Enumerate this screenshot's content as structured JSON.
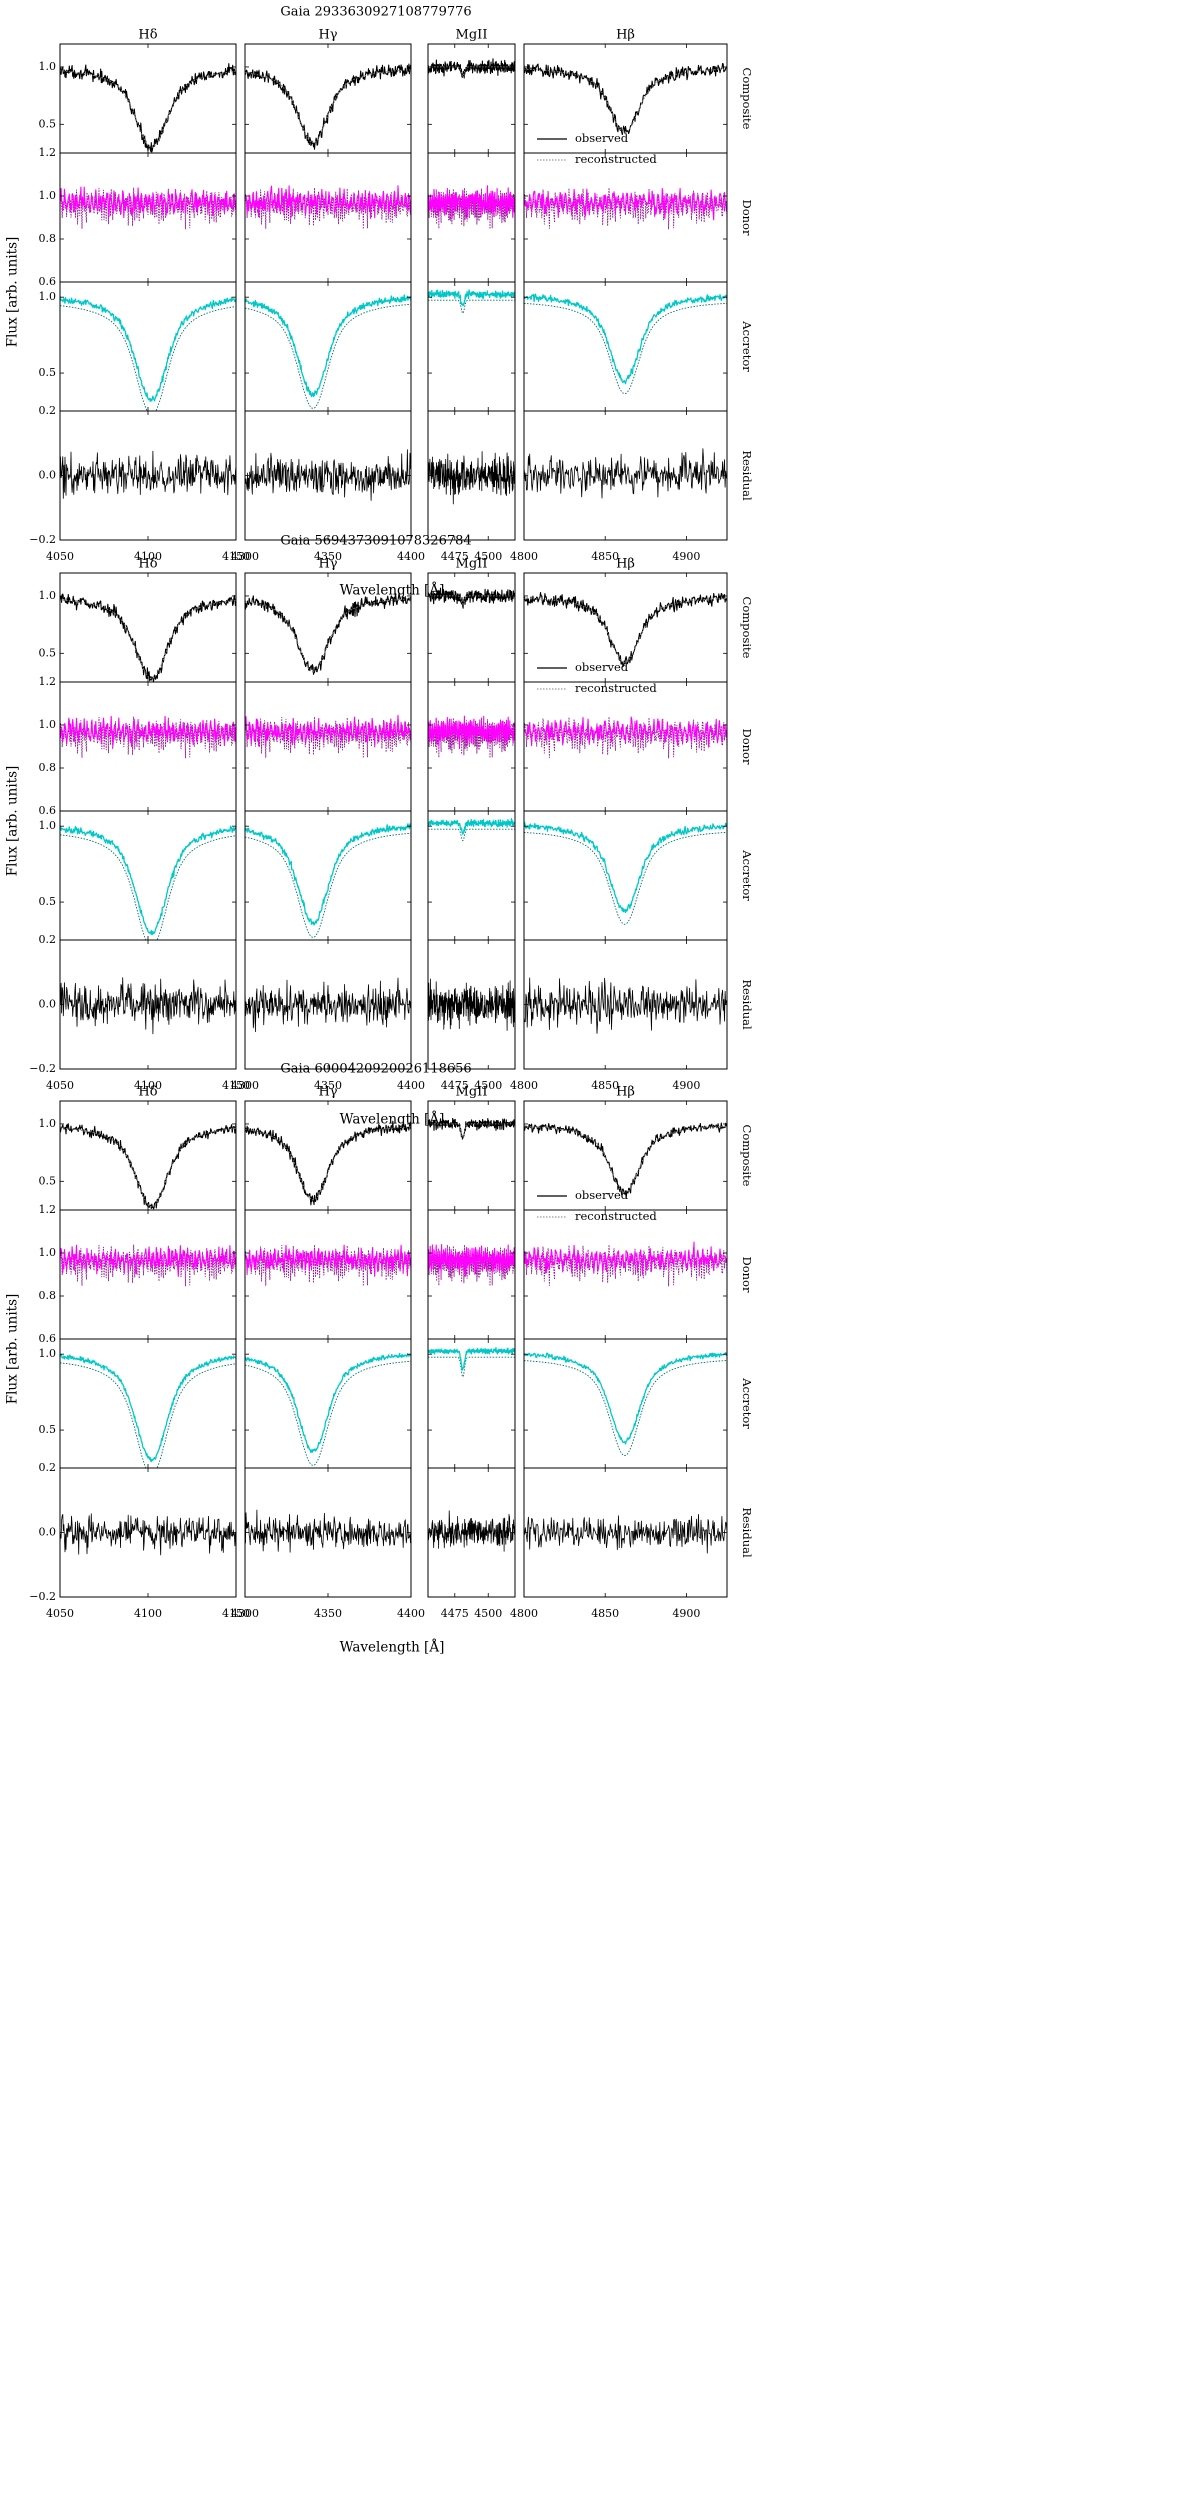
{
  "chart_data": [
    {
      "type": "line",
      "title": "Gaia 2933630927108779776",
      "xlabel": "Wavelength [Å]",
      "ylabel": "Flux [arb. units]",
      "columns": [
        {
          "label": "Hδ",
          "xlim": [
            4050,
            4150
          ],
          "xticks": [
            "4050",
            "4100",
            "4150"
          ],
          "center": 4102,
          "depth": 0.7
        },
        {
          "label": "Hγ",
          "xlim": [
            4300,
            4400
          ],
          "xticks": [
            "4300",
            "4350",
            "4400"
          ],
          "center": 4341,
          "depth": 0.66
        },
        {
          "label": "MgII",
          "xlim": [
            4455,
            4520
          ],
          "xticks": [
            "4475",
            "4500"
          ],
          "center": 4481,
          "depth": 0.08
        },
        {
          "label": "Hβ",
          "xlim": [
            4800,
            4925
          ],
          "xticks": [
            "4800",
            "4850",
            "4900"
          ],
          "center": 4862,
          "depth": 0.57
        }
      ],
      "rows": [
        {
          "label": "Composite",
          "ylim": [
            0.25,
            1.2
          ],
          "yticks": [
            "0.5",
            "1.0"
          ],
          "series": [
            {
              "name": "observed",
              "color": "#000000",
              "noise": 0.05
            },
            {
              "name": "reconstructed",
              "color": "#808080"
            }
          ]
        },
        {
          "label": "Donor",
          "ylim": [
            0.6,
            1.2
          ],
          "yticks": [
            "0.6",
            "0.8",
            "1.0",
            "1.2"
          ],
          "series": [
            {
              "color": "#ff00ff",
              "noise": 0.04
            },
            {
              "color": "#8b008b"
            }
          ]
        },
        {
          "label": "Accretor",
          "ylim": [
            0.25,
            1.1
          ],
          "yticks": [
            "0.5",
            "1.0"
          ],
          "series": [
            {
              "color": "#00c8c8",
              "noise": 0.02
            },
            {
              "color": "#007070"
            }
          ]
        },
        {
          "label": "Residual",
          "ylim": [
            -0.2,
            0.2
          ],
          "yticks": [
            "−0.2",
            "0.0",
            "0.2"
          ],
          "series": [
            {
              "color": "#000000",
              "noise": 0.055
            }
          ]
        }
      ],
      "legend": {
        "entries": [
          "observed",
          "reconstructed"
        ],
        "placement": "composite row, Hβ panel, lower-right"
      }
    },
    {
      "type": "line",
      "title": "Gaia 5694373091078326784",
      "xlabel": "Wavelength [Å]",
      "ylabel": "Flux [arb. units]",
      "columns": [
        {
          "label": "Hδ",
          "xlim": [
            4050,
            4150
          ],
          "xticks": [
            "4050",
            "4100",
            "4150"
          ],
          "center": 4102,
          "depth": 0.72
        },
        {
          "label": "Hγ",
          "xlim": [
            4300,
            4400
          ],
          "xticks": [
            "4300",
            "4350",
            "4400"
          ],
          "center": 4341,
          "depth": 0.66
        },
        {
          "label": "MgII",
          "xlim": [
            4455,
            4520
          ],
          "xticks": [
            "4475",
            "4500"
          ],
          "center": 4481,
          "depth": 0.07
        },
        {
          "label": "Hβ",
          "xlim": [
            4800,
            4925
          ],
          "xticks": [
            "4800",
            "4850",
            "4900"
          ],
          "center": 4862,
          "depth": 0.58
        }
      ],
      "rows": [
        {
          "label": "Composite",
          "ylim": [
            0.25,
            1.2
          ],
          "yticks": [
            "0.5",
            "1.0"
          ],
          "series": [
            {
              "name": "observed",
              "color": "#000000",
              "noise": 0.05
            },
            {
              "name": "reconstructed",
              "color": "#808080"
            }
          ]
        },
        {
          "label": "Donor",
          "ylim": [
            0.6,
            1.2
          ],
          "yticks": [
            "0.6",
            "0.8",
            "1.0",
            "1.2"
          ],
          "series": [
            {
              "color": "#ff00ff",
              "noise": 0.035
            },
            {
              "color": "#8b008b"
            }
          ]
        },
        {
          "label": "Accretor",
          "ylim": [
            0.25,
            1.1
          ],
          "yticks": [
            "0.5",
            "1.0"
          ],
          "series": [
            {
              "color": "#00c8c8",
              "noise": 0.02
            },
            {
              "color": "#007070"
            }
          ]
        },
        {
          "label": "Residual",
          "ylim": [
            -0.2,
            0.2
          ],
          "yticks": [
            "−0.2",
            "0.0",
            "0.2"
          ],
          "series": [
            {
              "color": "#000000",
              "noise": 0.06
            }
          ]
        }
      ],
      "legend": {
        "entries": [
          "observed",
          "reconstructed"
        ],
        "placement": "composite row, Hβ panel, lower-right"
      }
    },
    {
      "type": "line",
      "title": "Gaia 6000420920026118656",
      "xlabel": "Wavelength [Å]",
      "ylabel": "Flux [arb. units]",
      "columns": [
        {
          "label": "Hδ",
          "xlim": [
            4050,
            4150
          ],
          "xticks": [
            "4050",
            "4100",
            "4150"
          ],
          "center": 4102,
          "depth": 0.72
        },
        {
          "label": "Hγ",
          "xlim": [
            4300,
            4400
          ],
          "xticks": [
            "4300",
            "4350",
            "4400"
          ],
          "center": 4341,
          "depth": 0.66
        },
        {
          "label": "MgII",
          "xlim": [
            4455,
            4520
          ],
          "xticks": [
            "4475",
            "4500"
          ],
          "center": 4481,
          "depth": 0.12
        },
        {
          "label": "Hβ",
          "xlim": [
            4800,
            4925
          ],
          "xticks": [
            "4800",
            "4850",
            "4900"
          ],
          "center": 4862,
          "depth": 0.6
        }
      ],
      "rows": [
        {
          "label": "Composite",
          "ylim": [
            0.25,
            1.2
          ],
          "yticks": [
            "0.5",
            "1.0"
          ],
          "series": [
            {
              "name": "observed",
              "color": "#000000",
              "noise": 0.04
            },
            {
              "name": "reconstructed",
              "color": "#808080"
            }
          ]
        },
        {
          "label": "Donor",
          "ylim": [
            0.6,
            1.2
          ],
          "yticks": [
            "0.6",
            "0.8",
            "1.0",
            "1.2"
          ],
          "series": [
            {
              "color": "#ff00ff",
              "noise": 0.035
            },
            {
              "color": "#8b008b"
            }
          ]
        },
        {
          "label": "Accretor",
          "ylim": [
            0.25,
            1.1
          ],
          "yticks": [
            "0.5",
            "1.0"
          ],
          "series": [
            {
              "color": "#00c8c8",
              "noise": 0.015
            },
            {
              "color": "#007070"
            }
          ]
        },
        {
          "label": "Residual",
          "ylim": [
            -0.2,
            0.2
          ],
          "yticks": [
            "−0.2",
            "0.0",
            "0.2"
          ],
          "series": [
            {
              "color": "#000000",
              "noise": 0.045
            }
          ]
        }
      ],
      "legend": {
        "entries": [
          "observed",
          "reconstructed"
        ],
        "placement": "composite row, Hβ panel, lower-right"
      }
    }
  ]
}
